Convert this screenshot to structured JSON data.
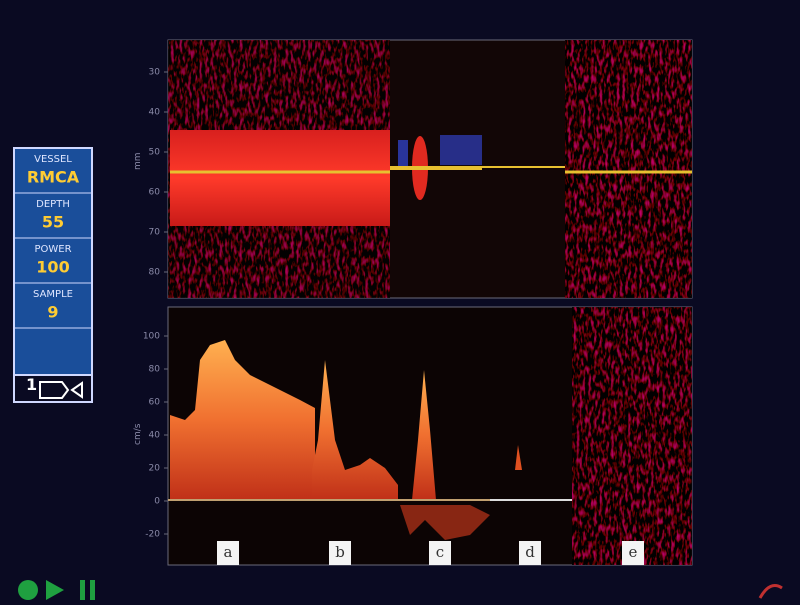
{
  "panel": {
    "items": [
      {
        "label": "VESSEL",
        "value": "RMCA"
      },
      {
        "label": "DEPTH",
        "value": "55"
      },
      {
        "label": "POWER",
        "value": "100"
      },
      {
        "label": "SAMPLE",
        "value": "9"
      }
    ]
  },
  "depth_axis": {
    "label": "mm",
    "ticks": [
      "30",
      "40",
      "50",
      "60",
      "70",
      "80"
    ]
  },
  "velocity_axis": {
    "label": "cm/s",
    "ticks": [
      "100",
      "80",
      "60",
      "40",
      "20",
      "0",
      "-20"
    ]
  },
  "segments": [
    "a",
    "b",
    "c",
    "d",
    "e"
  ]
}
